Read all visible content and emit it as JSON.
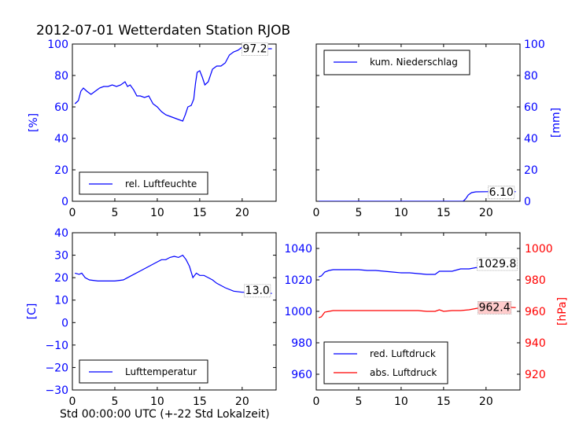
{
  "figure": {
    "title": "2012-07-01 Wetterdaten Station RJOB",
    "xlabel": "Std 00:00:00 UTC (+-22 Std Lokalzeit)"
  },
  "chart_data": [
    {
      "type": "line",
      "panel": "top-left",
      "ylabel": "[%]",
      "ylabel_color": "#0000ff",
      "tick_color": "#0000ff",
      "xlim": [
        0,
        24
      ],
      "ylim": [
        0,
        100
      ],
      "xticks": [
        0,
        5,
        10,
        15,
        20
      ],
      "yticks": [
        0,
        20,
        40,
        60,
        80,
        100
      ],
      "legend": "bottom-left",
      "annotation": {
        "text": "97.2",
        "x": 21.5,
        "y": 97.2
      },
      "series": [
        {
          "name": "rel. Luftfeuchte",
          "color": "#0000ff",
          "x": [
            0.3,
            0.7,
            1.0,
            1.3,
            1.7,
            2.2,
            2.7,
            3.2,
            3.7,
            4.2,
            4.7,
            5.2,
            5.7,
            6.2,
            6.5,
            6.8,
            7.2,
            7.6,
            8.0,
            8.5,
            9.0,
            9.5,
            10.0,
            10.5,
            11.0,
            11.5,
            12.0,
            12.5,
            13.0,
            13.3,
            13.6,
            14.0,
            14.3,
            14.5,
            14.7,
            15.0,
            15.3,
            15.6,
            16.0,
            16.5,
            17.0,
            17.5,
            18.0,
            18.5,
            19.0,
            19.5,
            20.0,
            20.5,
            21.0,
            21.5,
            22.0,
            22.5,
            23.0,
            23.5
          ],
          "y": [
            62,
            64,
            70,
            72,
            70,
            68,
            70,
            72,
            73,
            73,
            74,
            73,
            74,
            76,
            73,
            74,
            71,
            67,
            67,
            66,
            67,
            62,
            60,
            57,
            55,
            54,
            53,
            52,
            51,
            55,
            60,
            61,
            65,
            75,
            82,
            83,
            79,
            74,
            76,
            84,
            86,
            86,
            88,
            93,
            95,
            96,
            98,
            98,
            98,
            98,
            98,
            97,
            97,
            97
          ]
        }
      ]
    },
    {
      "type": "line",
      "panel": "top-right",
      "ylabel": "[mm]",
      "ylabel_color": "#0000ff",
      "tick_color": "#0000ff",
      "xlim": [
        0,
        24
      ],
      "ylim": [
        0,
        100
      ],
      "xticks": [
        0,
        5,
        10,
        15,
        20
      ],
      "yticks": [
        0,
        20,
        40,
        60,
        80,
        100
      ],
      "legend": "top-left",
      "annotation": {
        "text": "6.10",
        "x": 21.8,
        "y": 6.1
      },
      "series": [
        {
          "name": "kum. Niederschlag",
          "color": "#0000ff",
          "x": [
            0.3,
            17.3,
            17.6,
            17.9,
            18.3,
            18.8,
            20.0,
            22.0,
            23.5
          ],
          "y": [
            0,
            0,
            1.5,
            4,
            5.5,
            6,
            6.1,
            6.1,
            6.1
          ]
        }
      ]
    },
    {
      "type": "line",
      "panel": "bottom-left",
      "ylabel": "[C]",
      "ylabel_color": "#0000ff",
      "tick_color": "#0000ff",
      "xlim": [
        0,
        24
      ],
      "ylim": [
        -30,
        40
      ],
      "xticks": [
        0,
        5,
        10,
        15,
        20
      ],
      "yticks": [
        -30,
        -20,
        -10,
        0,
        10,
        20,
        30,
        40
      ],
      "legend": "bottom-left",
      "annotation": {
        "text": "13.0",
        "x": 21.8,
        "y": 14.5
      },
      "series": [
        {
          "name": "Lufttemperatur",
          "color": "#0000ff",
          "x": [
            0.3,
            0.8,
            1.1,
            1.5,
            2.0,
            3.0,
            4.0,
            5.0,
            6.0,
            7.0,
            8.0,
            9.0,
            10.0,
            10.5,
            11.0,
            11.5,
            12.0,
            12.5,
            13.0,
            13.4,
            13.8,
            14.2,
            14.6,
            15.0,
            15.5,
            16.0,
            16.5,
            17.0,
            18.0,
            19.0,
            20.0,
            21.0,
            22.0,
            23.5
          ],
          "y": [
            22,
            21.5,
            22,
            20,
            19,
            18.5,
            18.5,
            18.5,
            19,
            21,
            23,
            25,
            27,
            28,
            28,
            29,
            29.5,
            29,
            30,
            28,
            25,
            20,
            22,
            21,
            21,
            20,
            19,
            17.5,
            15.5,
            14,
            13.5,
            13.5,
            13,
            13
          ]
        }
      ]
    },
    {
      "type": "line",
      "panel": "bottom-right",
      "ylabel": "[hPa]",
      "ylabel_color": "#ff0000",
      "tick_color_left": "#0000ff",
      "tick_color_right": "#ff0000",
      "xlim": [
        0,
        24
      ],
      "ylim": [
        950,
        1050
      ],
      "ylim_right": [
        910,
        1010
      ],
      "xticks": [
        0,
        5,
        10,
        15,
        20
      ],
      "yticks": [
        960,
        980,
        1000,
        1020,
        1040
      ],
      "yticks_right": [
        920,
        940,
        960,
        980,
        1000
      ],
      "legend": "bottom-left",
      "annotations": [
        {
          "text": "1029.8",
          "x": 21.3,
          "y": 1030.5
        },
        {
          "text": "962.4",
          "x": 21.0,
          "y": 962.8,
          "axis": "right",
          "background": "#ffcccc"
        }
      ],
      "series": [
        {
          "name": "red. Luftdruck",
          "color": "#0000ff",
          "axis": "left",
          "x": [
            0.3,
            0.6,
            1.0,
            1.5,
            2.0,
            3.0,
            4.0,
            5.0,
            6.0,
            7.0,
            8.0,
            9.0,
            10.0,
            11.0,
            12.0,
            13.0,
            14.0,
            14.5,
            15.0,
            16.0,
            17.0,
            18.0,
            19.0,
            20.0,
            21.0,
            22.0,
            23.0,
            23.5
          ],
          "y": [
            1022,
            1022.5,
            1025,
            1026,
            1026.5,
            1026.5,
            1026.5,
            1026.5,
            1026,
            1026,
            1025.5,
            1025,
            1024.5,
            1024.5,
            1024,
            1023.5,
            1023.5,
            1025.5,
            1025.5,
            1025.5,
            1027,
            1027,
            1028,
            1028.5,
            1029.5,
            1030,
            1029.8,
            1029.8
          ]
        },
        {
          "name": "abs. Luftdruck",
          "color": "#ff0000",
          "axis": "right",
          "x": [
            0.3,
            0.6,
            1.0,
            1.5,
            2.0,
            3.0,
            4.0,
            5.0,
            6.0,
            7.0,
            8.0,
            9.0,
            10.0,
            11.0,
            12.0,
            13.0,
            14.0,
            14.5,
            15.0,
            16.0,
            17.0,
            18.0,
            19.0,
            20.0,
            21.0,
            22.0,
            23.0,
            23.5
          ],
          "y": [
            956,
            956.5,
            959.5,
            960,
            960.5,
            960.5,
            960.5,
            960.5,
            960.5,
            960.5,
            960.5,
            960.5,
            960.5,
            960.5,
            960.5,
            960,
            960,
            961,
            960,
            960.5,
            960.5,
            961,
            962,
            963,
            964.5,
            964,
            962.5,
            962.4
          ]
        }
      ]
    }
  ]
}
